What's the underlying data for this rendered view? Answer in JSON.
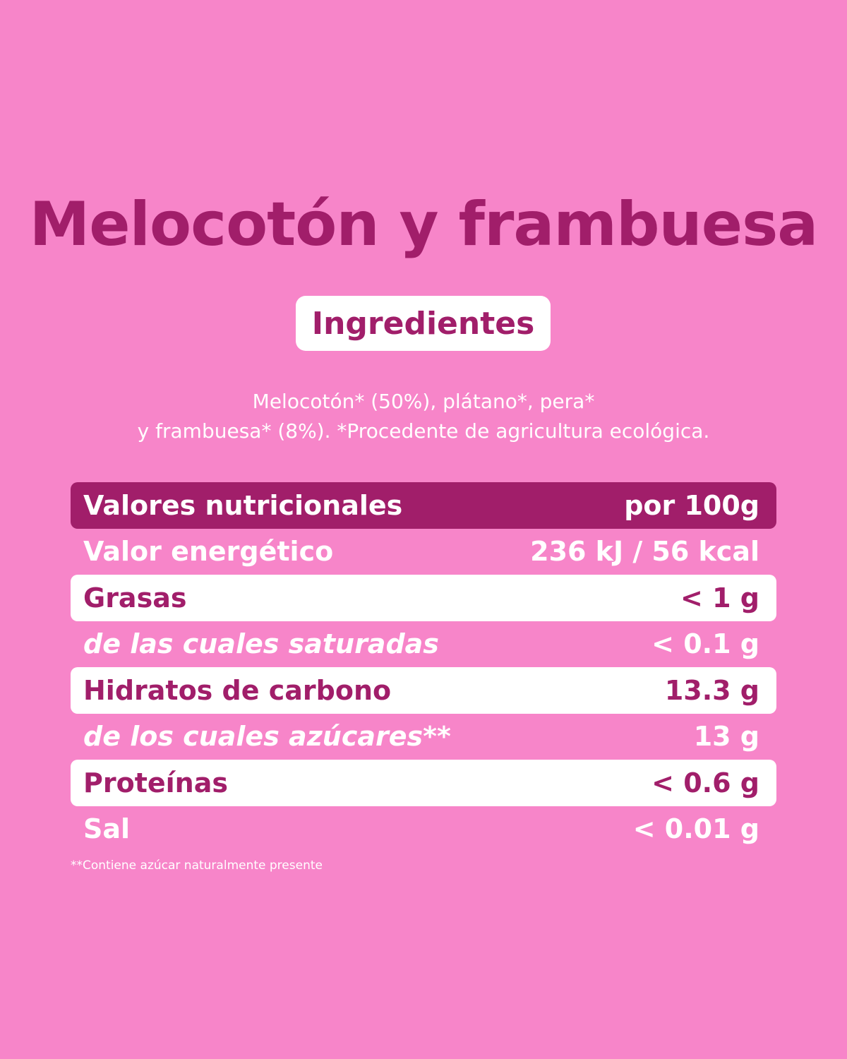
{
  "title": "Melocotón y frambuesa",
  "ingredients_label": "Ingredientes",
  "ingredients_lines": [
    "Melocotón* (50%), plátano*, pera*",
    "y frambuesa* (8%). *Procedente de agricultura ecológica."
  ],
  "table": {
    "header": [
      "Valores nutricionales",
      "por 100g"
    ],
    "rows": [
      [
        "Valor energético",
        "236 kJ / 56 kcal"
      ],
      [
        "Grasas",
        "< 1 g"
      ],
      [
        "de las cuales saturadas",
        "< 0.1 g"
      ],
      [
        "Hidratos de carbono",
        "13.3 g"
      ],
      [
        "de los cuales azúcares**",
        "13 g"
      ],
      [
        "Proteínas",
        "< 0.6 g"
      ],
      [
        "Sal",
        "< 0.01 g"
      ]
    ]
  },
  "footnote": "**Contiene azúcar naturalmente presente"
}
